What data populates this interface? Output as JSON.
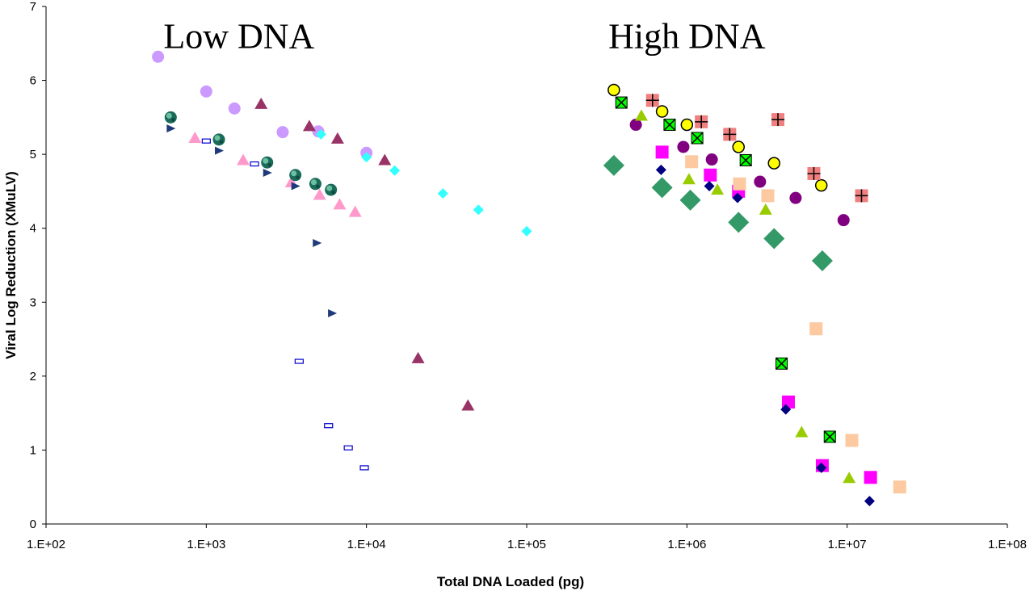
{
  "chart_data": {
    "type": "scatter",
    "xlabel": "Total DNA Loaded (pg)",
    "ylabel": "Viral Log Reduction (XMuLV)",
    "xscale": "log",
    "xlim": [
      100,
      100000000
    ],
    "ylim": [
      0,
      7
    ],
    "xticks": [
      "1.E+02",
      "1.E+03",
      "1.E+04",
      "1.E+05",
      "1.E+06",
      "1.E+07",
      "1.E+08"
    ],
    "yticks": [
      "0",
      "1",
      "2",
      "3",
      "4",
      "5",
      "6",
      "7"
    ],
    "grid": false,
    "legend": "none",
    "annotations": [
      {
        "text": "Low DNA",
        "x": 1600,
        "y": 6.6
      },
      {
        "text": "High DNA",
        "x": 1000000,
        "y": 6.6
      }
    ],
    "series": [
      {
        "marker": "circle",
        "color": "#cc99ff",
        "points": [
          [
            500,
            6.32
          ],
          [
            1000,
            5.85
          ],
          [
            1500,
            5.62
          ],
          [
            3000,
            5.3
          ],
          [
            5000,
            5.31
          ],
          [
            10000,
            5.02
          ]
        ]
      },
      {
        "marker": "triangle",
        "color": "#993366",
        "points": [
          [
            2200,
            5.68
          ],
          [
            4400,
            5.38
          ],
          [
            6600,
            5.21
          ],
          [
            13000,
            4.92
          ],
          [
            21000,
            2.24
          ],
          [
            43000,
            1.6
          ]
        ]
      },
      {
        "marker": "triangle",
        "color": "#ff99cc",
        "points": [
          [
            850,
            5.22
          ],
          [
            1700,
            4.92
          ],
          [
            3400,
            4.62
          ],
          [
            5100,
            4.45
          ],
          [
            6800,
            4.32
          ],
          [
            8500,
            4.22
          ]
        ]
      },
      {
        "marker": "globe",
        "color": "#339966",
        "points": [
          [
            600,
            5.5
          ],
          [
            1200,
            5.2
          ],
          [
            2400,
            4.89
          ],
          [
            3600,
            4.72
          ],
          [
            4800,
            4.6
          ],
          [
            6000,
            4.52
          ]
        ]
      },
      {
        "marker": "right-triangle",
        "color": "#1f3a7a",
        "points": [
          [
            600,
            5.35
          ],
          [
            1200,
            5.05
          ],
          [
            2400,
            4.75
          ],
          [
            3600,
            4.57
          ],
          [
            4900,
            3.8
          ],
          [
            6100,
            2.85
          ]
        ]
      },
      {
        "marker": "dash-box",
        "color": "#0000cc",
        "points": [
          [
            1000,
            5.18
          ],
          [
            2000,
            4.87
          ],
          [
            3800,
            2.2
          ],
          [
            5800,
            1.33
          ],
          [
            7700,
            1.03
          ],
          [
            9700,
            0.76
          ]
        ]
      },
      {
        "marker": "diamond",
        "color": "#33ffff",
        "points": [
          [
            5200,
            5.27
          ],
          [
            10000,
            4.96
          ],
          [
            15000,
            4.78
          ],
          [
            30000,
            4.47
          ],
          [
            50000,
            4.25
          ],
          [
            100000,
            3.96
          ]
        ]
      },
      {
        "marker": "circle-outline",
        "color": "#ffff00",
        "points": [
          [
            350000,
            5.87
          ],
          [
            700000,
            5.58
          ],
          [
            1000000,
            5.4
          ],
          [
            2100000,
            5.1
          ],
          [
            3500000,
            4.88
          ],
          [
            6900000,
            4.58
          ]
        ]
      },
      {
        "marker": "square-plus",
        "color": "#f08080",
        "points": [
          [
            610000,
            5.73
          ],
          [
            1230000,
            5.44
          ],
          [
            1850000,
            5.27
          ],
          [
            3700000,
            5.47
          ],
          [
            6200000,
            4.74
          ],
          [
            12300000,
            4.44
          ]
        ]
      },
      {
        "marker": "square-x",
        "color": "#00ff00",
        "points": [
          [
            390000,
            5.7
          ],
          [
            780000,
            5.4
          ],
          [
            1160000,
            5.22
          ],
          [
            2330000,
            4.92
          ],
          [
            3900000,
            2.17
          ],
          [
            7800000,
            1.18
          ]
        ]
      },
      {
        "marker": "circle",
        "color": "#800080",
        "points": [
          [
            480000,
            5.4
          ],
          [
            950000,
            5.1
          ],
          [
            1430000,
            4.93
          ],
          [
            2860000,
            4.63
          ],
          [
            4770000,
            4.41
          ],
          [
            9500000,
            4.11
          ]
        ]
      },
      {
        "marker": "square",
        "color": "#ff00ff",
        "points": [
          [
            700000,
            5.03
          ],
          [
            1400000,
            4.72
          ],
          [
            2100000,
            4.5
          ],
          [
            4300000,
            1.65
          ],
          [
            7000000,
            0.79
          ],
          [
            14000000,
            0.63
          ]
        ]
      },
      {
        "marker": "square",
        "color": "#fcc9a0",
        "points": [
          [
            1070000,
            4.9
          ],
          [
            2130000,
            4.6
          ],
          [
            3200000,
            4.44
          ],
          [
            6400000,
            2.64
          ],
          [
            10700000,
            1.13
          ],
          [
            21300000,
            0.5
          ]
        ]
      },
      {
        "marker": "triangle",
        "color": "#99cc00",
        "points": [
          [
            520000,
            5.52
          ],
          [
            1030000,
            4.66
          ],
          [
            1550000,
            4.52
          ],
          [
            3100000,
            4.25
          ],
          [
            5200000,
            1.24
          ],
          [
            10300000,
            0.62
          ]
        ]
      },
      {
        "marker": "diamond",
        "color": "#000080",
        "points": [
          [
            690000,
            4.79
          ],
          [
            1380000,
            4.57
          ],
          [
            2070000,
            4.41
          ],
          [
            4140000,
            1.55
          ],
          [
            6900000,
            0.76
          ],
          [
            13800000,
            0.31
          ]
        ]
      },
      {
        "marker": "diamond",
        "color": "#339966",
        "size": "large",
        "points": [
          [
            350000,
            4.85
          ],
          [
            700000,
            4.55
          ],
          [
            1050000,
            4.38
          ],
          [
            2100000,
            4.08
          ],
          [
            3500000,
            3.86
          ],
          [
            7000000,
            3.56
          ]
        ]
      }
    ]
  }
}
